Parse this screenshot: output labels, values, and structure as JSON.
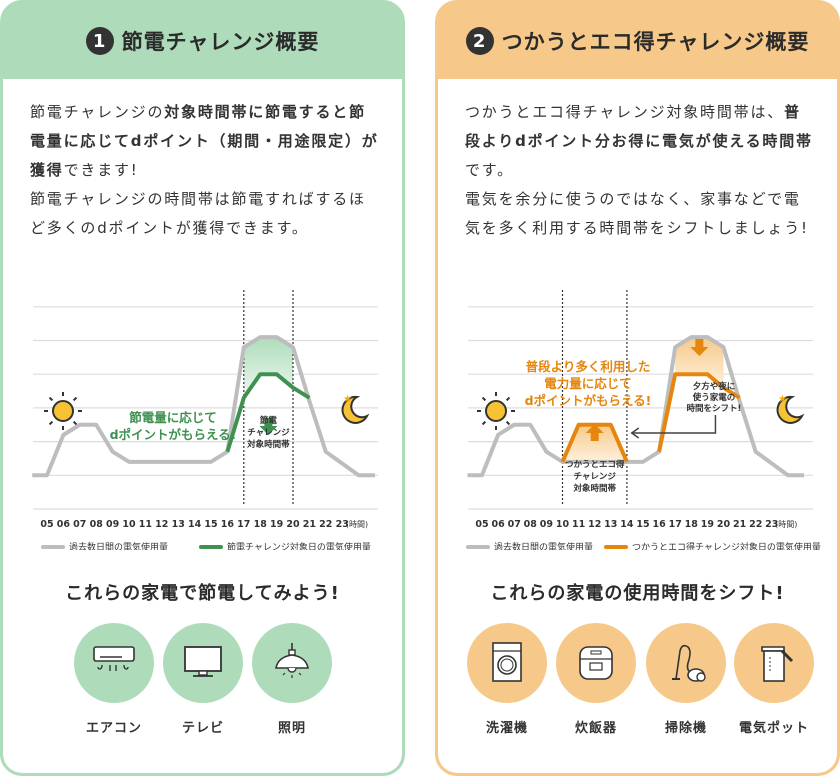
{
  "cards": [
    {
      "number": "1",
      "title": "節電チャレンジ概要",
      "p1": {
        "a": "節電チャレンジの",
        "b": "対象時間帯に節電すると節電量に応じてdポイント（期間・用途限定）が獲得",
        "c": "できます!"
      },
      "p2": "節電チャレンジの時間帯は節電すればするほど多くのdポイントが獲得できます。",
      "callout": [
        "節電量に応じて",
        "dポイントがもらえる!"
      ],
      "period_label": [
        "節電",
        "チャレンジ",
        "対象時間帯"
      ],
      "heading": "これらの家電で節電してみよう!",
      "appliances": [
        {
          "label": "エアコン",
          "icon": "air-conditioner-icon"
        },
        {
          "label": "テレビ",
          "icon": "tv-icon"
        },
        {
          "label": "照明",
          "icon": "lamp-icon"
        }
      ]
    },
    {
      "number": "2",
      "title": "つかうとエコ得チャレンジ概要",
      "p1": {
        "a": "つかうとエコ得チャレンジ対象時間帯は、",
        "b": "普段よりdポイント分お得に電気が使える時間帯",
        "c": "です。"
      },
      "p2": "電気を余分に使うのではなく、家事などで電気を多く利用する時間帯をシフトしましょう!",
      "callout": [
        "普段より多く利用した",
        "電力量に応じて",
        "dポイントがもらえる!"
      ],
      "shift_note": [
        "夕方や夜に",
        "使う家電の",
        "時間をシフト!"
      ],
      "period_label": [
        "つかうとエコ得",
        "チャレンジ",
        "対象時間帯"
      ],
      "heading": "これらの家電の使用時間をシフト!",
      "appliances": [
        {
          "label": "洗濯機",
          "icon": "washing-machine-icon"
        },
        {
          "label": "炊飯器",
          "icon": "rice-cooker-icon"
        },
        {
          "label": "掃除機",
          "icon": "vacuum-cleaner-icon"
        },
        {
          "label": "電気ポット",
          "icon": "electric-pot-icon"
        }
      ]
    }
  ],
  "colors": {
    "green_bg": "#aedcbb",
    "orange_bg": "#f6c98a",
    "green_line": "#3f9150",
    "orange_line": "#e5860f",
    "gray_line": "#bdbdbd"
  },
  "chart_data": [
    {
      "type": "line",
      "x_ticks": [
        "05",
        "06",
        "07",
        "08",
        "09",
        "10",
        "11",
        "12",
        "13",
        "14",
        "15",
        "16",
        "17",
        "18",
        "19",
        "20",
        "21",
        "22",
        "23"
      ],
      "x_unit": "(時間)",
      "period": [
        17,
        20
      ],
      "series": [
        {
          "name": "過去数日間の電気使用量",
          "color": "#bdbdbd",
          "x": [
            4.1,
            5,
            6,
            7,
            8,
            9,
            10,
            15,
            16,
            17,
            18,
            19,
            20,
            21,
            22,
            24,
            25
          ],
          "y": [
            1,
            1,
            2.2,
            2.5,
            2.5,
            1.7,
            1.4,
            1.4,
            1.7,
            4.8,
            5.1,
            5.1,
            4.8,
            3.2,
            1.7,
            1,
            1
          ]
        },
        {
          "name": "節電チャレンジ対象日の電気使用量",
          "color": "#3f9150",
          "x": [
            16,
            17,
            18,
            19,
            20,
            21
          ],
          "y": [
            1.7,
            3.3,
            4.0,
            4.0,
            3.6,
            3.3
          ]
        }
      ]
    },
    {
      "type": "line",
      "x_ticks": [
        "05",
        "06",
        "07",
        "08",
        "09",
        "10",
        "11",
        "12",
        "13",
        "14",
        "15",
        "16",
        "17",
        "18",
        "19",
        "20",
        "21",
        "22",
        "23"
      ],
      "x_unit": "(時間)",
      "period": [
        10,
        14
      ],
      "series": [
        {
          "name": "過去数日間の電気使用量",
          "color": "#bdbdbd",
          "x": [
            4.1,
            5,
            6,
            7,
            8,
            9,
            10,
            15,
            16,
            17,
            18,
            19,
            20,
            21,
            22,
            24,
            25
          ],
          "y": [
            1,
            1,
            2.2,
            2.5,
            2.5,
            1.7,
            1.4,
            1.4,
            1.7,
            4.8,
            5.1,
            5.1,
            4.8,
            3.2,
            1.7,
            1,
            1
          ]
        },
        {
          "name": "つかうとエコ得チャレンジ対象日の電気使用量",
          "color": "#e5860f",
          "x": [
            10,
            11,
            13,
            14
          ],
          "y": [
            1.4,
            2.5,
            2.5,
            1.4
          ]
        },
        {
          "name": "",
          "color": "#e5860f",
          "x": [
            16,
            17,
            19,
            20,
            21
          ],
          "y": [
            1.7,
            4.0,
            4.0,
            3.6,
            3.3
          ]
        }
      ]
    }
  ]
}
